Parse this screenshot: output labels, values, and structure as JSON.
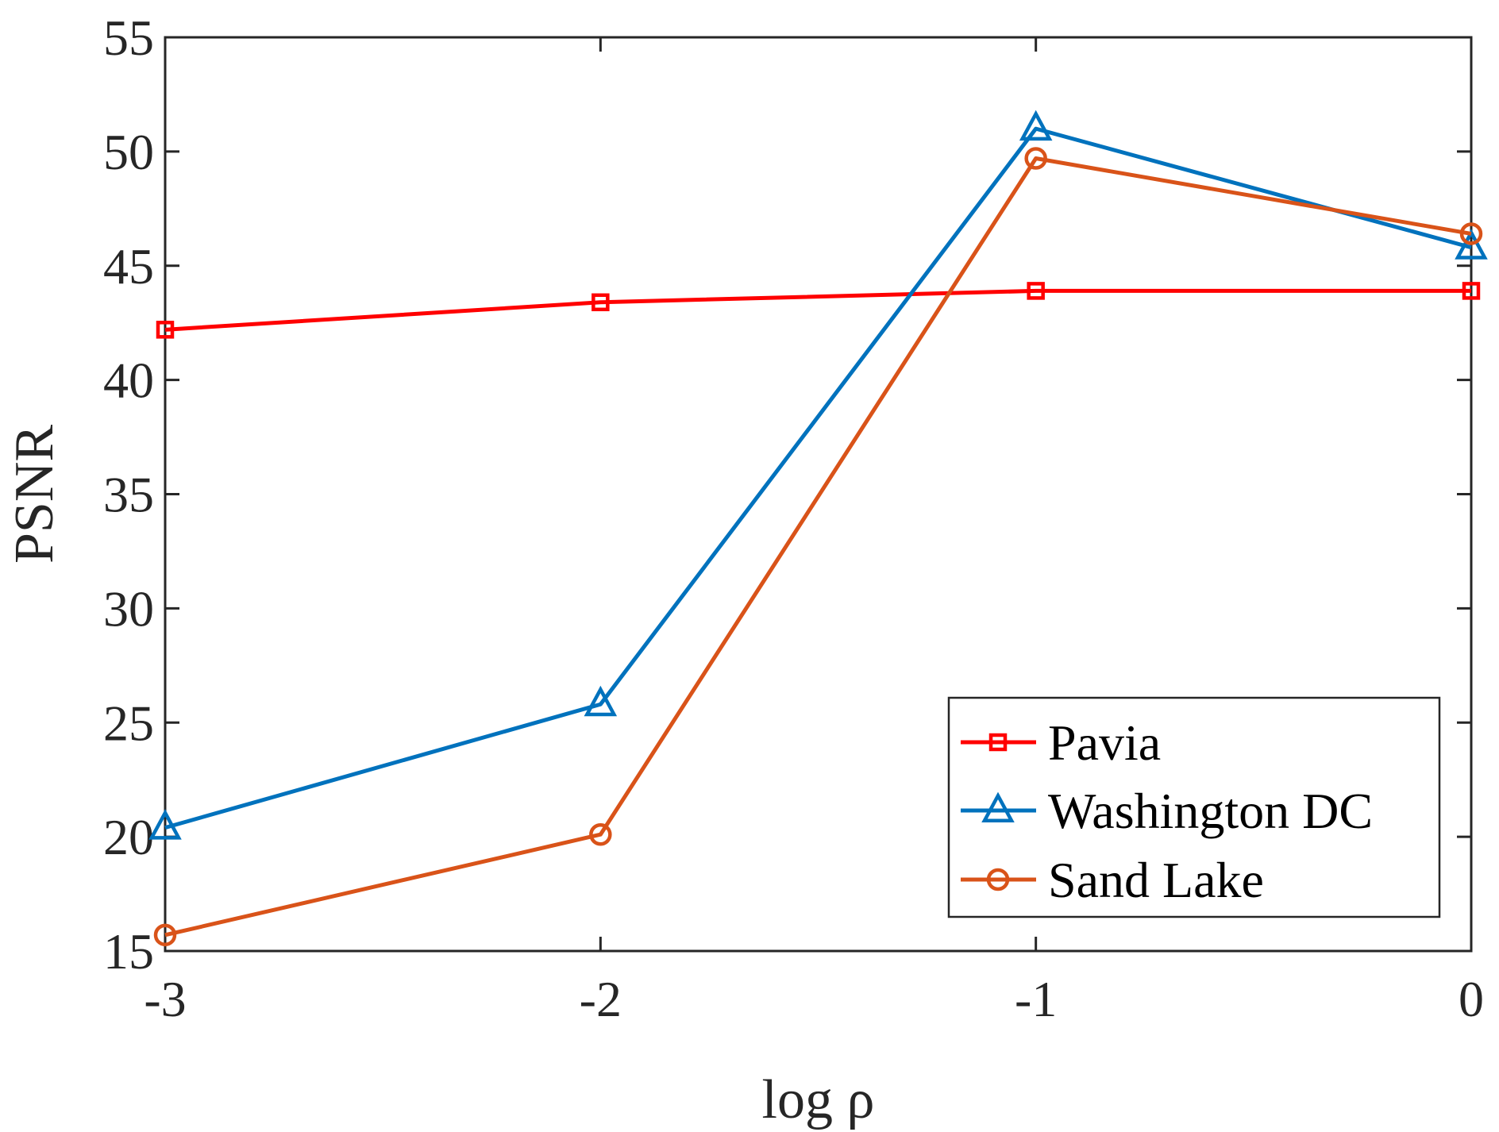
{
  "chart_data": {
    "type": "line",
    "title": "",
    "xlabel": "log ρ",
    "ylabel": "PSNR",
    "x": [
      -3,
      -2,
      -1,
      0
    ],
    "xlim": [
      -3,
      0
    ],
    "ylim": [
      15,
      55
    ],
    "xticks": [
      -3,
      -2,
      -1,
      0
    ],
    "yticks": [
      15,
      20,
      25,
      30,
      35,
      40,
      45,
      50,
      55
    ],
    "xtick_labels": [
      "-3",
      "-2",
      "-1",
      "0"
    ],
    "ytick_labels": [
      "15",
      "20",
      "25",
      "30",
      "35",
      "40",
      "45",
      "50",
      "55"
    ],
    "grid": false,
    "legend_position": "bottom-right",
    "series": [
      {
        "name": "Pavia",
        "color": "#ff0000",
        "marker": "square",
        "values": [
          42.2,
          43.4,
          43.9,
          43.9
        ]
      },
      {
        "name": "Washington DC",
        "color": "#0072bd",
        "marker": "triangle",
        "values": [
          20.4,
          25.8,
          51.0,
          45.8
        ]
      },
      {
        "name": "Sand Lake",
        "color": "#d95319",
        "marker": "circle",
        "values": [
          15.7,
          20.1,
          49.7,
          46.4
        ]
      }
    ]
  }
}
